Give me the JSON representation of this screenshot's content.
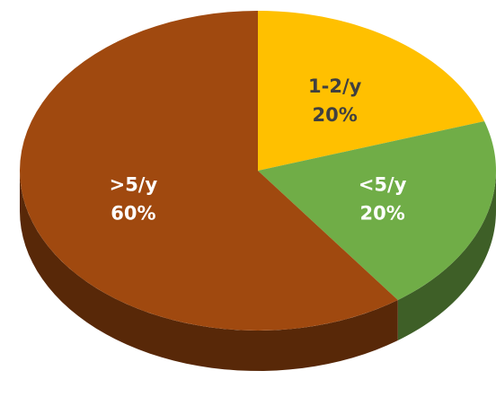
{
  "chart_data": {
    "type": "pie",
    "categories": [
      "1-2/y",
      "<5/y",
      ">5/y"
    ],
    "values": [
      20,
      20,
      60
    ],
    "value_labels": [
      "20%",
      "20%",
      "60%"
    ],
    "colors": [
      "#ffc000",
      "#70ad47",
      "#a0490f"
    ],
    "start_angle": 0,
    "direction": "clockwise",
    "three_d": true
  }
}
